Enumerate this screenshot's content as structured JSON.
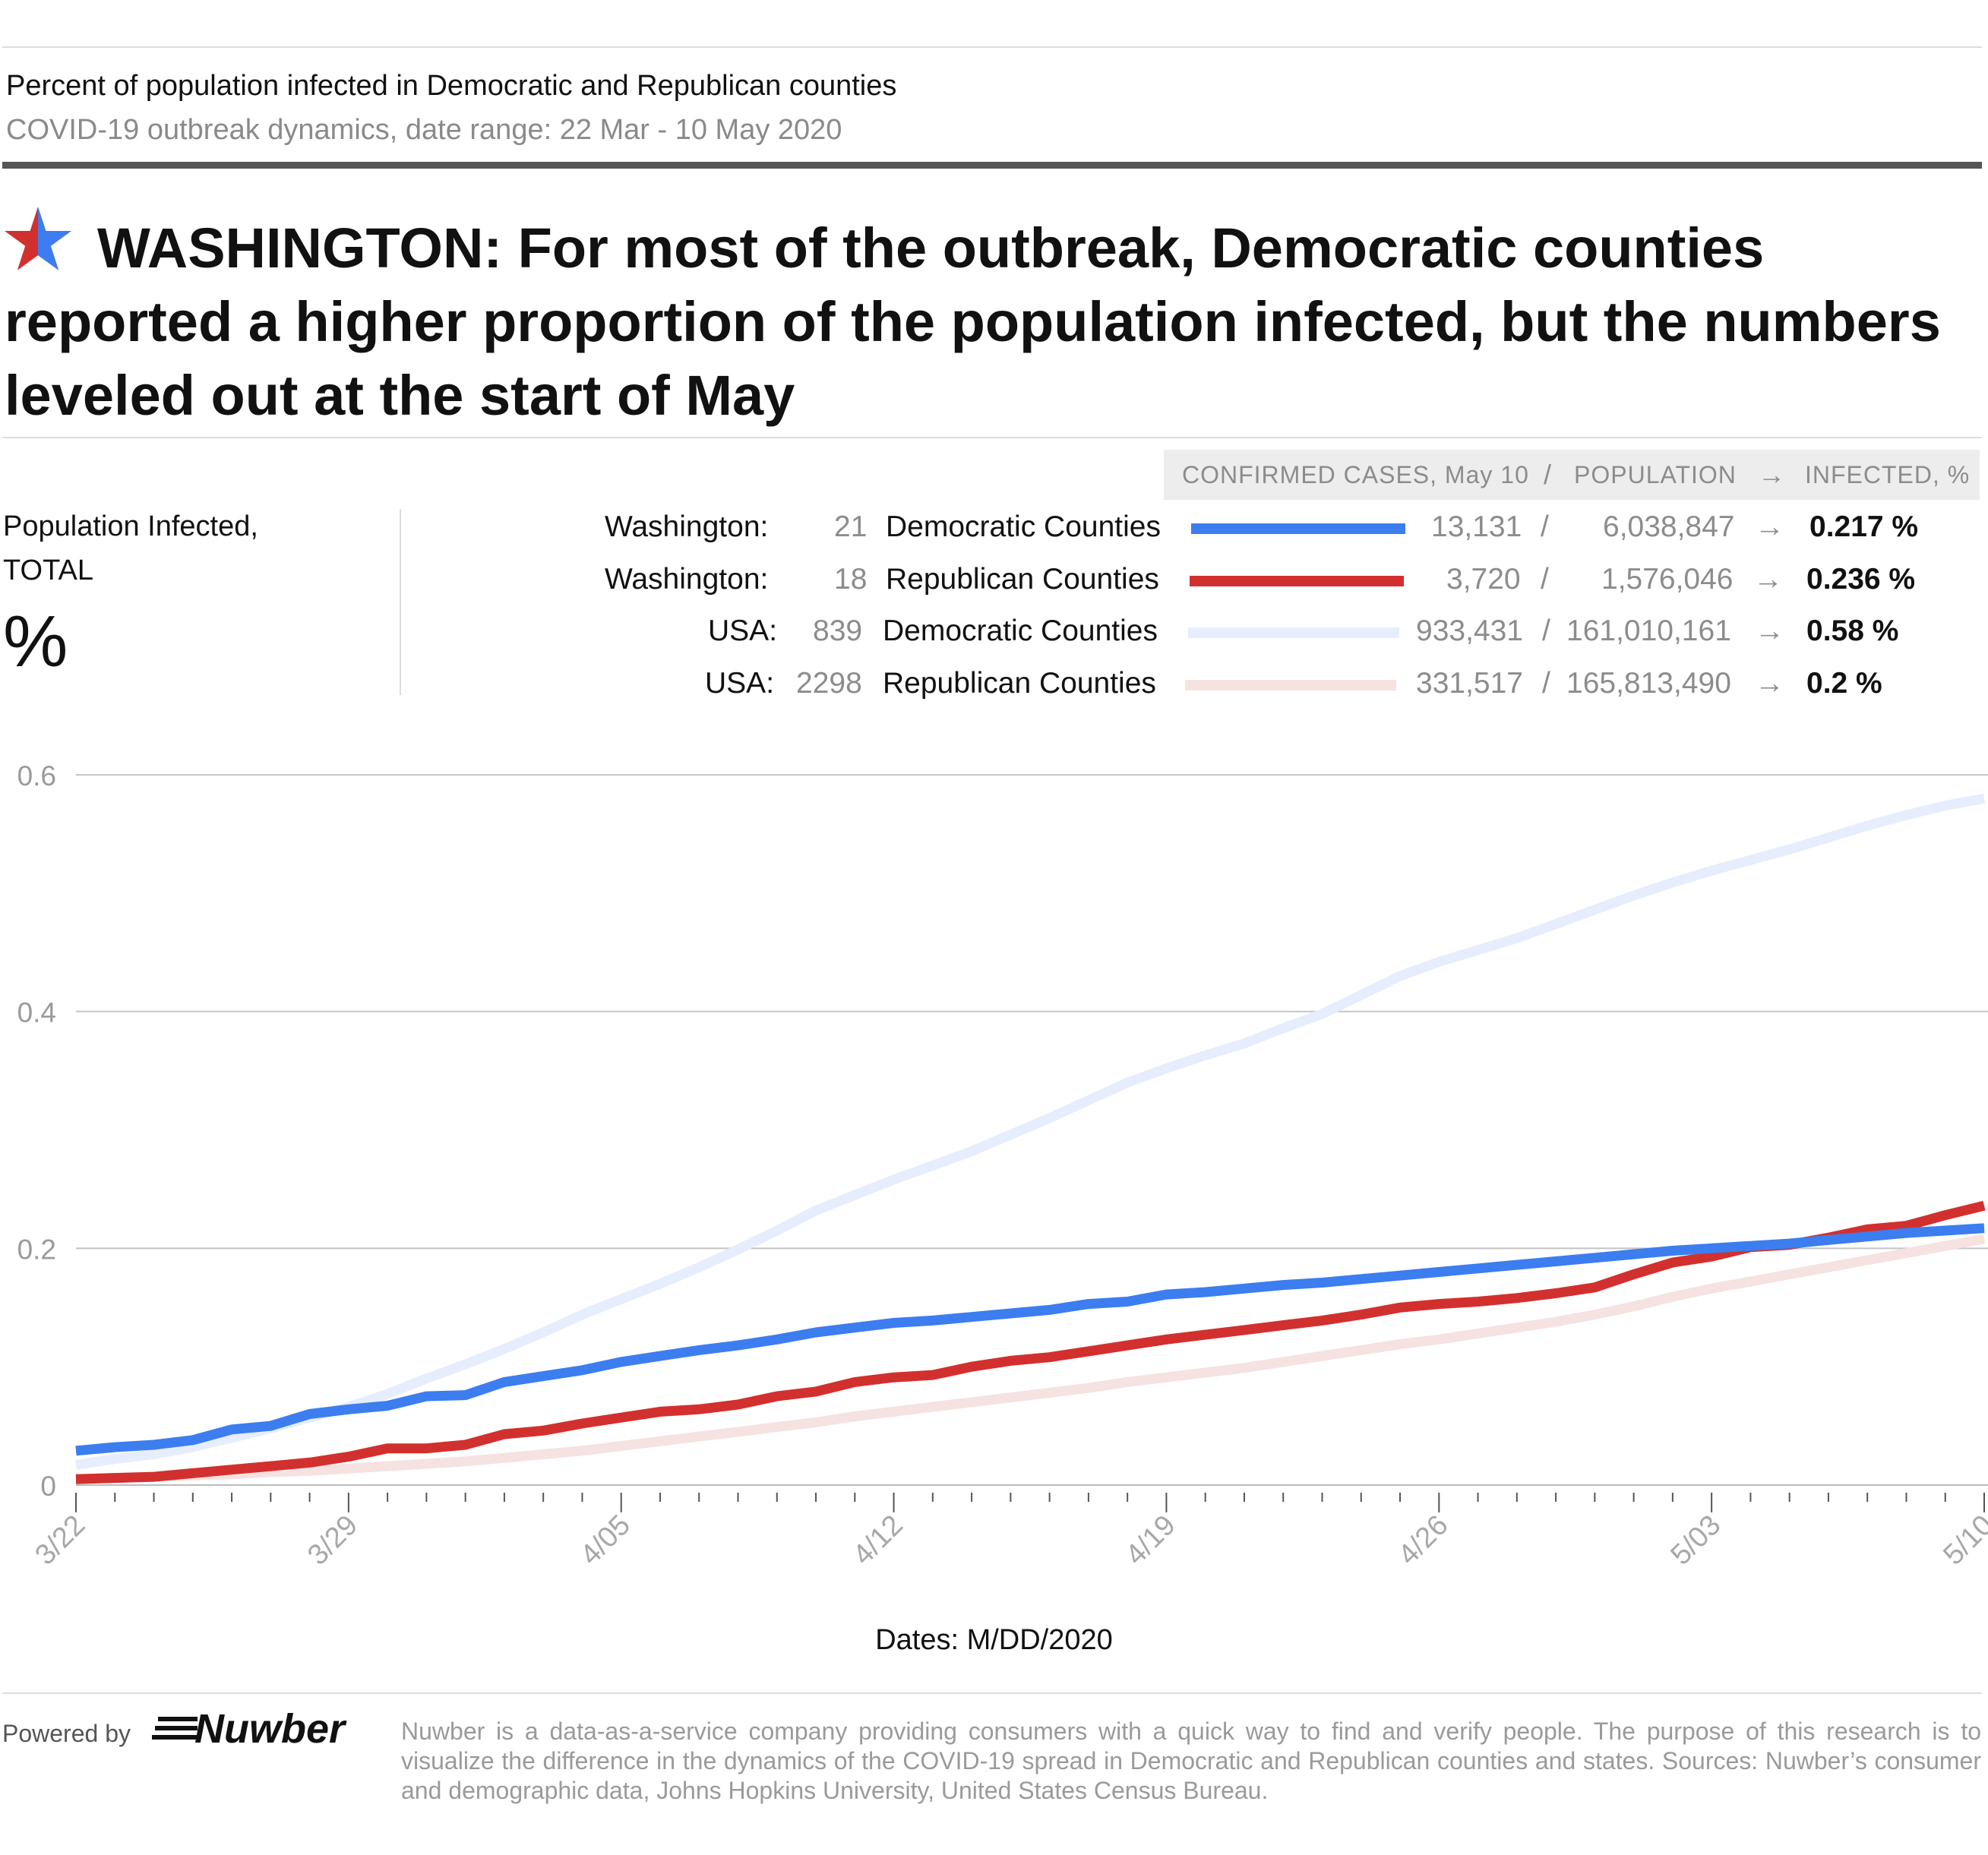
{
  "kicker": "Percent of population infected in Democratic and Republican counties",
  "subkicker": "COVID-19 outbreak dynamics, date range: 22 Mar - 10 May 2020",
  "headline": "WASHINGTON: For most of the outbreak, Democratic counties reported a higher proportion of the population infected, but the numbers leveled out at the start of May",
  "left_panel": {
    "line1": "Population Infected,",
    "line2": "TOTAL",
    "unit": "%"
  },
  "legend_header": {
    "cases": "CONFIRMED CASES, May 10",
    "slash": "/",
    "population": "POPULATION",
    "arrow": "→",
    "infected": "INFECTED, %"
  },
  "legend": [
    {
      "region": "Washington:",
      "count": "21",
      "label": "Democratic Counties",
      "cases": "13,131",
      "sep": "/",
      "population": "6,038,847",
      "arrow": "→",
      "infected": "0.217 %",
      "color": "#3c7df0"
    },
    {
      "region": "Washington:",
      "count": "18",
      "label": "Republican Counties",
      "cases": "3,720",
      "sep": "/",
      "population": "1,576,046",
      "arrow": "→",
      "infected": "0.236 %",
      "color": "#d2302e"
    },
    {
      "region": "USA:",
      "count": "839",
      "label": "Democratic Counties",
      "cases": "933,431",
      "sep": "/",
      "population": "161,010,161",
      "arrow": "→",
      "infected": "0.58 %",
      "color": "#e6edfc"
    },
    {
      "region": "USA:",
      "count": "2298",
      "label": "Republican Counties",
      "cases": "331,517",
      "sep": "/",
      "population": "165,813,490",
      "arrow": "→",
      "infected": "0.2 %",
      "color": "#f5e2e1"
    }
  ],
  "chart_data": {
    "type": "line",
    "title": "",
    "xlabel": "Dates: M/DD/2020",
    "ylabel": "Population Infected, TOTAL %",
    "ylim": [
      0,
      0.6
    ],
    "yticks": [
      "0",
      "0.2",
      "0.4",
      "0.6"
    ],
    "grid": true,
    "x_tick_labels": [
      "3/22",
      "3/29",
      "4/05",
      "4/12",
      "4/19",
      "4/26",
      "5/03",
      "5/10"
    ],
    "x": [
      "3/22",
      "3/23",
      "3/24",
      "3/25",
      "3/26",
      "3/27",
      "3/28",
      "3/29",
      "3/30",
      "3/31",
      "4/01",
      "4/02",
      "4/03",
      "4/04",
      "4/05",
      "4/06",
      "4/07",
      "4/08",
      "4/09",
      "4/10",
      "4/11",
      "4/12",
      "4/13",
      "4/14",
      "4/15",
      "4/16",
      "4/17",
      "4/18",
      "4/19",
      "4/20",
      "4/21",
      "4/22",
      "4/23",
      "4/24",
      "4/25",
      "4/26",
      "4/27",
      "4/28",
      "4/29",
      "4/30",
      "5/01",
      "5/02",
      "5/03",
      "5/04",
      "5/05",
      "5/06",
      "5/07",
      "5/08",
      "5/09",
      "5/10"
    ],
    "series": [
      {
        "name": "USA: 839 Democratic Counties",
        "color": "#e6edfc",
        "values": [
          0.017,
          0.022,
          0.026,
          0.032,
          0.04,
          0.048,
          0.057,
          0.066,
          0.077,
          0.09,
          0.102,
          0.115,
          0.129,
          0.144,
          0.157,
          0.17,
          0.184,
          0.199,
          0.215,
          0.232,
          0.245,
          0.258,
          0.27,
          0.282,
          0.296,
          0.31,
          0.325,
          0.34,
          0.352,
          0.363,
          0.373,
          0.386,
          0.398,
          0.414,
          0.43,
          0.442,
          0.452,
          0.462,
          0.474,
          0.486,
          0.498,
          0.509,
          0.519,
          0.528,
          0.537,
          0.547,
          0.557,
          0.566,
          0.574,
          0.58
        ]
      },
      {
        "name": "USA: 2298 Republican Counties",
        "color": "#f5e2e1",
        "values": [
          0.005,
          0.006,
          0.007,
          0.008,
          0.009,
          0.011,
          0.012,
          0.014,
          0.016,
          0.018,
          0.02,
          0.023,
          0.026,
          0.029,
          0.033,
          0.037,
          0.041,
          0.045,
          0.049,
          0.053,
          0.058,
          0.062,
          0.066,
          0.07,
          0.074,
          0.078,
          0.082,
          0.087,
          0.091,
          0.095,
          0.099,
          0.104,
          0.109,
          0.114,
          0.119,
          0.123,
          0.128,
          0.133,
          0.138,
          0.144,
          0.151,
          0.159,
          0.166,
          0.172,
          0.178,
          0.184,
          0.19,
          0.196,
          0.202,
          0.208
        ]
      },
      {
        "name": "Washington: 18 Republican Counties",
        "color": "#d2302e",
        "values": [
          0.005,
          0.006,
          0.007,
          0.01,
          0.013,
          0.016,
          0.019,
          0.024,
          0.031,
          0.031,
          0.034,
          0.043,
          0.046,
          0.052,
          0.057,
          0.062,
          0.064,
          0.068,
          0.075,
          0.079,
          0.087,
          0.091,
          0.093,
          0.1,
          0.105,
          0.108,
          0.113,
          0.118,
          0.123,
          0.127,
          0.131,
          0.135,
          0.139,
          0.144,
          0.15,
          0.153,
          0.155,
          0.158,
          0.162,
          0.167,
          0.178,
          0.188,
          0.193,
          0.201,
          0.203,
          0.209,
          0.216,
          0.219,
          0.228,
          0.236
        ]
      },
      {
        "name": "Washington: 21 Democratic Counties",
        "color": "#3c7df0",
        "values": [
          0.029,
          0.032,
          0.034,
          0.038,
          0.047,
          0.05,
          0.06,
          0.064,
          0.067,
          0.075,
          0.076,
          0.087,
          0.092,
          0.097,
          0.104,
          0.109,
          0.114,
          0.118,
          0.123,
          0.129,
          0.133,
          0.137,
          0.139,
          0.142,
          0.145,
          0.148,
          0.153,
          0.155,
          0.161,
          0.163,
          0.166,
          0.169,
          0.171,
          0.174,
          0.177,
          0.18,
          0.183,
          0.186,
          0.189,
          0.192,
          0.195,
          0.198,
          0.2,
          0.202,
          0.204,
          0.207,
          0.21,
          0.213,
          0.215,
          0.217
        ]
      }
    ]
  },
  "footer": {
    "powered": "Powered by",
    "logo": "Nuwber",
    "note": "Nuwber is a data-as-a-service company providing consumers with a quick way to find and verify people. The purpose of this research is to visualize the difference in the dynamics of the COVID-19 spread in Democratic and Republican counties and states. Sources: Nuwber’s consumer and demographic data, Johns Hopkins University, United States Census Bureau."
  }
}
